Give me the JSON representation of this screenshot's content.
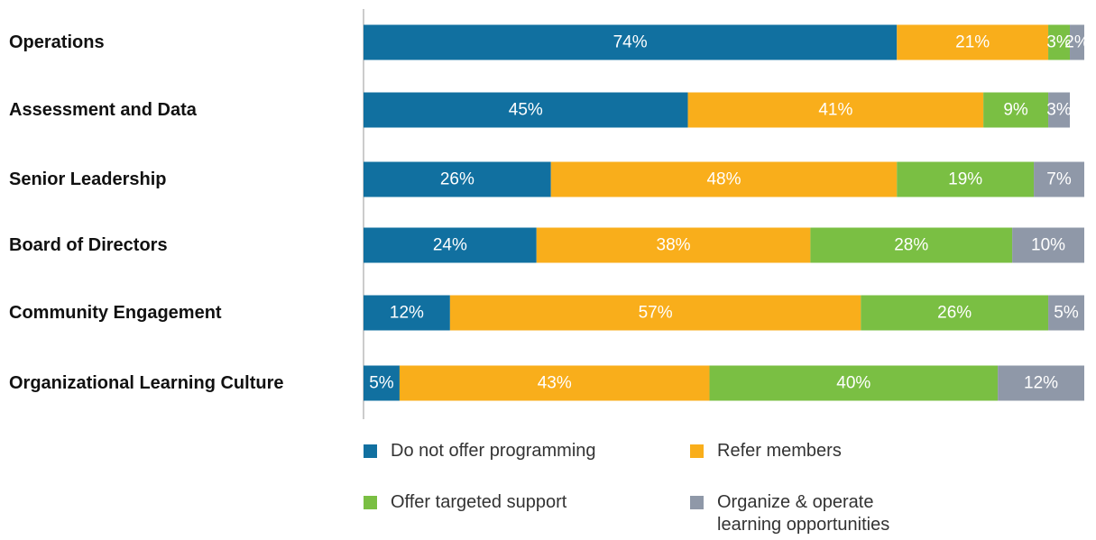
{
  "chart_data": {
    "type": "stacked-bar-horizontal",
    "categories": [
      "Operations",
      "Assessment and Data",
      "Senior Leadership",
      "Board of Directors",
      "Community Engagement",
      "Organizational Learning Culture"
    ],
    "series": [
      {
        "name": "Do not offer programming",
        "color": "#1170a0",
        "values": [
          74,
          45,
          26,
          24,
          12,
          5
        ],
        "value_labels": [
          "74%",
          "45%",
          "26%",
          "24%",
          "12%",
          "5%"
        ]
      },
      {
        "name": "Refer members",
        "color": "#f9ae1b",
        "values": [
          21,
          41,
          48,
          38,
          57,
          43
        ],
        "value_labels": [
          "21%",
          "41%",
          "48%",
          "38%",
          "57%",
          "43%"
        ]
      },
      {
        "name": "Offer targeted support",
        "color": "#7abf43",
        "values": [
          3,
          9,
          19,
          28,
          26,
          40
        ],
        "value_labels": [
          "3%",
          "9%",
          "19%",
          "28%",
          "26%",
          "40%"
        ]
      },
      {
        "name": "Organize & operate learning opportunities",
        "color": "#8f98a8",
        "values": [
          2,
          3,
          7,
          10,
          5,
          12
        ],
        "value_labels": [
          "2%",
          "3%",
          "7%",
          "10%",
          "5%",
          "12%"
        ]
      }
    ]
  }
}
